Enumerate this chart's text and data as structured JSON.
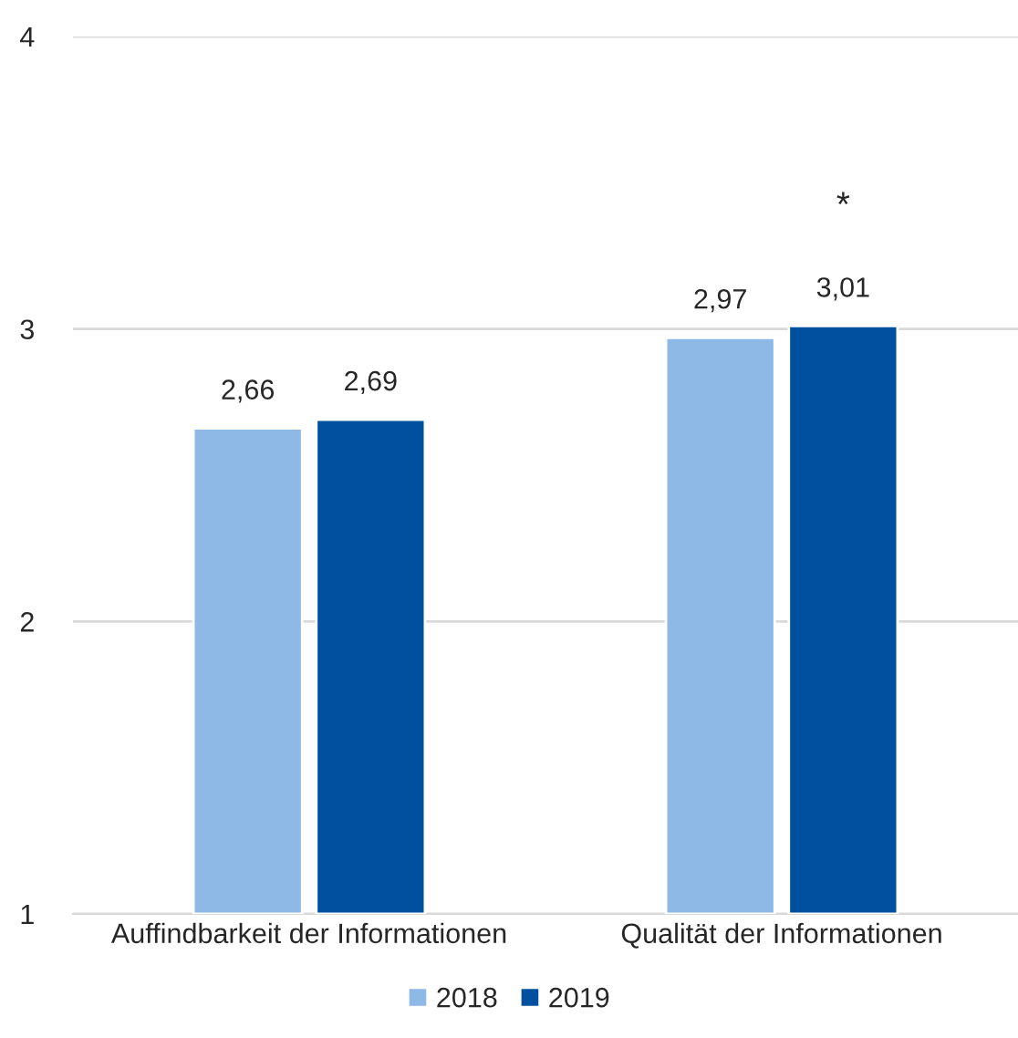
{
  "chart_data": {
    "type": "bar",
    "categories": [
      "Auffindbarkeit der Informationen",
      "Qualität der Informationen"
    ],
    "series": [
      {
        "name": "2018",
        "color": "#8eb8e5",
        "values": [
          2.66,
          2.97
        ],
        "value_labels": [
          "2,66",
          "2,97"
        ]
      },
      {
        "name": "2019",
        "color": "#0050a0",
        "values": [
          2.69,
          3.01
        ],
        "value_labels": [
          "2,69",
          "3,01"
        ]
      }
    ],
    "ylim": [
      1,
      4
    ],
    "yticks": [
      1,
      2,
      3,
      4
    ],
    "grid": "y",
    "legend": "bottom",
    "annotations": [
      "*"
    ]
  }
}
